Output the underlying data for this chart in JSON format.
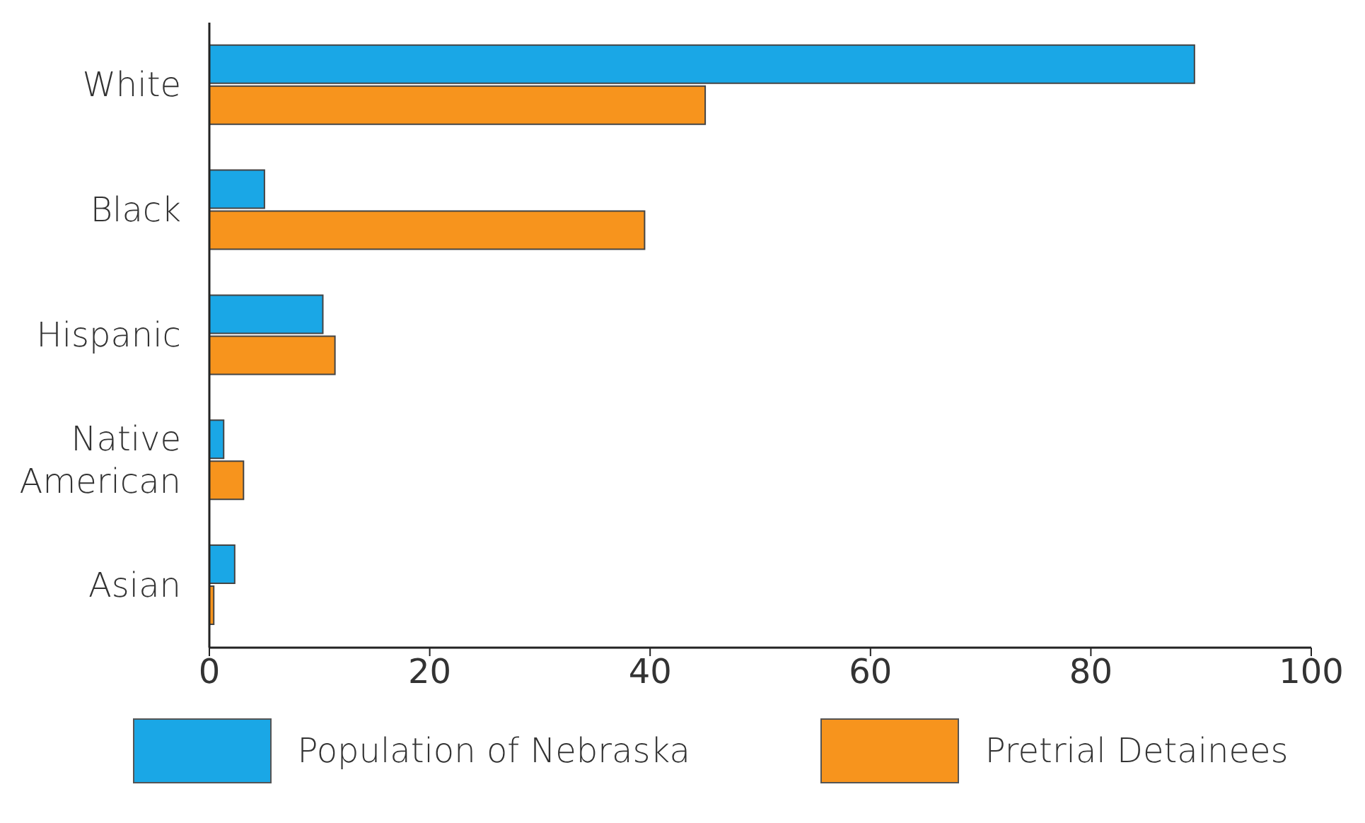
{
  "chart_data": {
    "type": "bar",
    "orientation": "horizontal",
    "categories": [
      "White",
      "Black",
      "Hispanic",
      "Native American",
      "Asian"
    ],
    "series": [
      {
        "name": "Population of Nebraska",
        "color": "#1aa7e6",
        "values": [
          89.4,
          5,
          10.3,
          1.3,
          2.3
        ]
      },
      {
        "name": "Pretrial Detainees",
        "color": "#f7941d",
        "values": [
          45,
          39.5,
          11.4,
          3.1,
          0.4
        ]
      }
    ],
    "xlim": [
      0,
      100
    ],
    "xticks": [
      0,
      20,
      40,
      60,
      80,
      100
    ],
    "grid": false,
    "legend": "bottom"
  }
}
